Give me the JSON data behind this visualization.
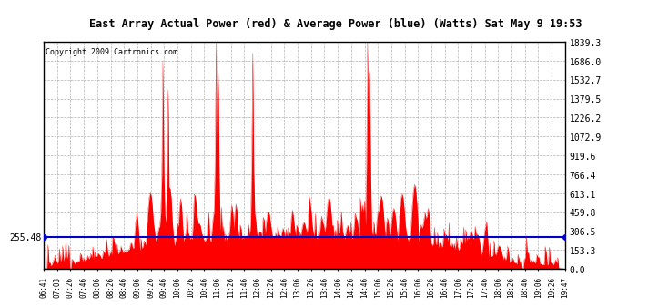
{
  "title": "East Array Actual Power (red) & Average Power (blue) (Watts) Sat May 9 19:53",
  "copyright": "Copyright 2009 Cartronics.com",
  "average_power": 255.48,
  "y_tick_labels": [
    "0.0",
    "153.3",
    "306.5",
    "459.8",
    "613.1",
    "766.4",
    "919.6",
    "1072.9",
    "1226.2",
    "1379.5",
    "1532.7",
    "1686.0",
    "1839.3"
  ],
  "y_max": 1839.3,
  "y_min": 0.0,
  "x_labels": [
    "06:41",
    "07:03",
    "07:26",
    "07:46",
    "08:06",
    "08:26",
    "08:46",
    "09:06",
    "09:26",
    "09:46",
    "10:06",
    "10:26",
    "10:46",
    "11:06",
    "11:26",
    "11:46",
    "12:06",
    "12:26",
    "12:46",
    "13:06",
    "13:26",
    "13:46",
    "14:06",
    "14:26",
    "14:46",
    "15:06",
    "15:26",
    "15:46",
    "16:06",
    "16:26",
    "16:46",
    "17:06",
    "17:26",
    "17:46",
    "18:06",
    "18:26",
    "18:46",
    "19:06",
    "19:26",
    "19:47"
  ],
  "background_color": "#ffffff",
  "plot_bg_color": "#ffffff",
  "grid_color": "#aaaaaa",
  "fill_color": "#ff0000",
  "line_color": "#0000cc",
  "title_bg": "#cccccc",
  "border_color": "#000000"
}
